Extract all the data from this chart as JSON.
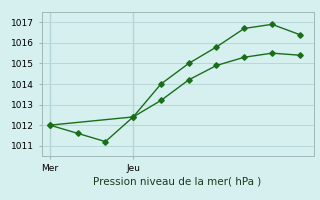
{
  "line1_x": [
    0,
    1,
    2,
    3,
    4,
    5,
    6,
    7,
    8,
    9
  ],
  "line1_y": [
    1012.0,
    1011.6,
    1011.2,
    1012.4,
    1014.0,
    1015.0,
    1015.8,
    1016.7,
    1016.9,
    1016.4
  ],
  "line2_x": [
    0,
    3,
    4,
    5,
    6,
    7,
    8,
    9
  ],
  "line2_y": [
    1012.0,
    1012.4,
    1013.2,
    1014.2,
    1014.9,
    1015.3,
    1015.5,
    1015.4
  ],
  "color": "#1a6e1a",
  "bg_color": "#d6f0f0",
  "grid_color": "#b8d8d8",
  "xlabel": "Pression niveau de la mer( hPa )",
  "ylim": [
    1010.5,
    1017.5
  ],
  "yticks": [
    1011,
    1012,
    1013,
    1014,
    1015,
    1016,
    1017
  ],
  "day_labels": [
    "Mer",
    "Jeu"
  ],
  "day_positions": [
    0,
    3
  ],
  "xlim": [
    -0.3,
    9.5
  ],
  "marker": "D",
  "markersize": 2.8,
  "linewidth": 1.0,
  "tick_fontsize": 6.5,
  "xlabel_fontsize": 7.5
}
